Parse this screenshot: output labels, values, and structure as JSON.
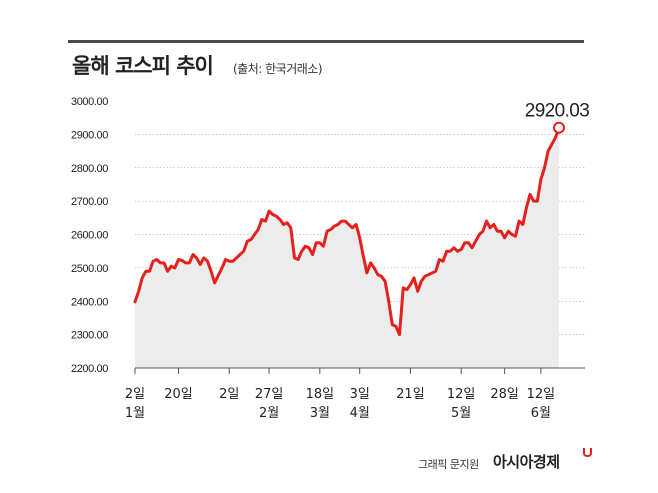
{
  "title": "올해 코스피 추이",
  "source": "(출처: 한국거래소)",
  "credit": "그래픽 문지원",
  "brand": "아시아경제",
  "colors": {
    "line": "#e5211d",
    "area": "#ececec",
    "grid": "#9a9a9a",
    "tick_text": "#222222"
  },
  "chart_data": {
    "type": "line",
    "title": "올해 코스피 추이",
    "xlabel": "",
    "ylabel": "",
    "ylim": [
      2200,
      3000
    ],
    "y_ticks": [
      "3000.00",
      "2900.00",
      "2800.00",
      "2700.00",
      "2600.00",
      "2500.00",
      "2400.00",
      "2300.00",
      "2200.00"
    ],
    "grid": "horizontal",
    "x_labels": [
      {
        "day": "2일",
        "month": "1월",
        "index": 0
      },
      {
        "day": "20일",
        "month": "",
        "index": 12
      },
      {
        "day": "2일",
        "month": "",
        "index": 26
      },
      {
        "day": "27일",
        "month": "2월",
        "index": 37
      },
      {
        "day": "18일",
        "month": "3월",
        "index": 51
      },
      {
        "day": "3일",
        "month": "4월",
        "index": 62
      },
      {
        "day": "21일",
        "month": "",
        "index": 76
      },
      {
        "day": "12일",
        "month": "5월",
        "index": 90
      },
      {
        "day": "28일",
        "month": "",
        "index": 102
      },
      {
        "day": "12일",
        "month": "6월",
        "index": 112
      }
    ],
    "annotation": {
      "label": "2920.03",
      "value": 2920.03
    },
    "series": [
      {
        "values": [
          2398,
          2430,
          2470,
          2490,
          2490,
          2520,
          2525,
          2515,
          2515,
          2490,
          2505,
          2500,
          2525,
          2522,
          2515,
          2515,
          2540,
          2530,
          2510,
          2530,
          2520,
          2490,
          2455,
          2478,
          2500,
          2525,
          2520,
          2520,
          2530,
          2540,
          2550,
          2580,
          2585,
          2600,
          2615,
          2645,
          2640,
          2670,
          2660,
          2655,
          2645,
          2630,
          2635,
          2620,
          2530,
          2525,
          2550,
          2565,
          2560,
          2540,
          2575,
          2575,
          2565,
          2610,
          2615,
          2625,
          2630,
          2640,
          2640,
          2630,
          2620,
          2630,
          2590,
          2535,
          2485,
          2515,
          2500,
          2480,
          2475,
          2460,
          2400,
          2330,
          2325,
          2300,
          2440,
          2435,
          2450,
          2470,
          2430,
          2460,
          2475,
          2480,
          2485,
          2490,
          2525,
          2520,
          2550,
          2550,
          2560,
          2550,
          2555,
          2575,
          2575,
          2560,
          2580,
          2600,
          2610,
          2640,
          2620,
          2630,
          2610,
          2610,
          2590,
          2610,
          2600,
          2595,
          2640,
          2630,
          2680,
          2720,
          2700,
          2700,
          2765,
          2800,
          2850,
          2870,
          2890,
          2920.03
        ]
      }
    ]
  }
}
